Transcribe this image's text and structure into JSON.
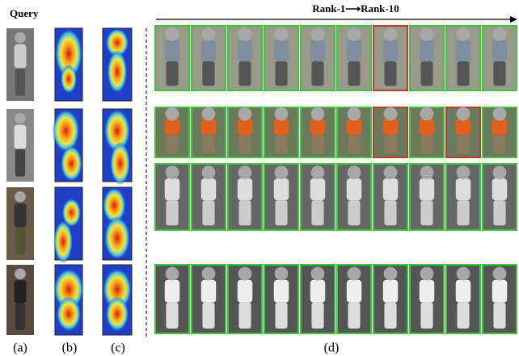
{
  "query_label": "Query",
  "rank_label": "Rank-1⟶Rank-10",
  "captions": [
    "(a)",
    "(b)",
    "(c)",
    "(d)"
  ]
}
